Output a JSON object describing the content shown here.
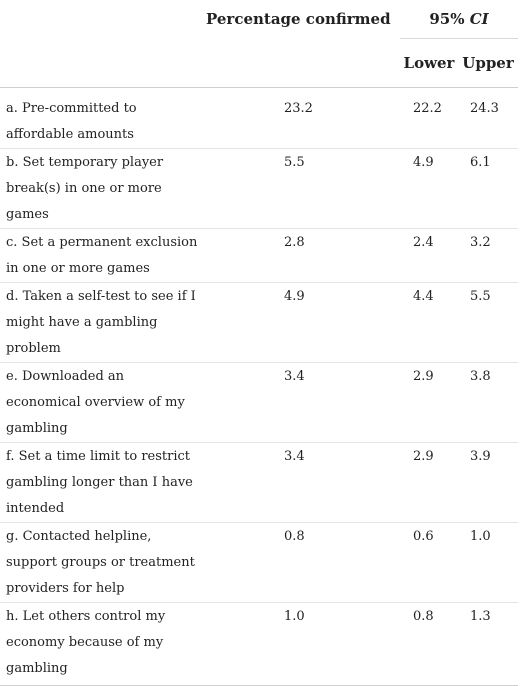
{
  "header": {
    "percentage_confirmed": "Percentage confirmed",
    "ci_prefix": "95% ",
    "ci_label": "CI",
    "lower": "Lower",
    "upper": "Upper"
  },
  "rows": [
    {
      "item": "a. Pre-committed to affordable amounts",
      "pct": "23.2",
      "lower": "22.2",
      "upper": "24.3"
    },
    {
      "item": "b. Set temporary player break(s) in one or more games",
      "pct": "5.5",
      "lower": "4.9",
      "upper": "6.1"
    },
    {
      "item": "c. Set a permanent exclusion in one or more games",
      "pct": "2.8",
      "lower": "2.4",
      "upper": "3.2"
    },
    {
      "item": "d. Taken a self-test to see if I might have a gambling problem",
      "pct": "4.9",
      "lower": "4.4",
      "upper": "5.5"
    },
    {
      "item": "e. Downloaded an economical overview of my gambling",
      "pct": "3.4",
      "lower": "2.9",
      "upper": "3.8"
    },
    {
      "item": "f. Set a time limit to restrict gambling longer than I have intended",
      "pct": "3.4",
      "lower": "2.9",
      "upper": "3.9"
    },
    {
      "item": "g. Contacted helpline, support groups or treatment providers for help",
      "pct": "0.8",
      "lower": "0.6",
      "upper": "1.0"
    },
    {
      "item": "h. Let others control my economy because of my gambling",
      "pct": "1.0",
      "lower": "0.8",
      "upper": "1.3"
    }
  ]
}
